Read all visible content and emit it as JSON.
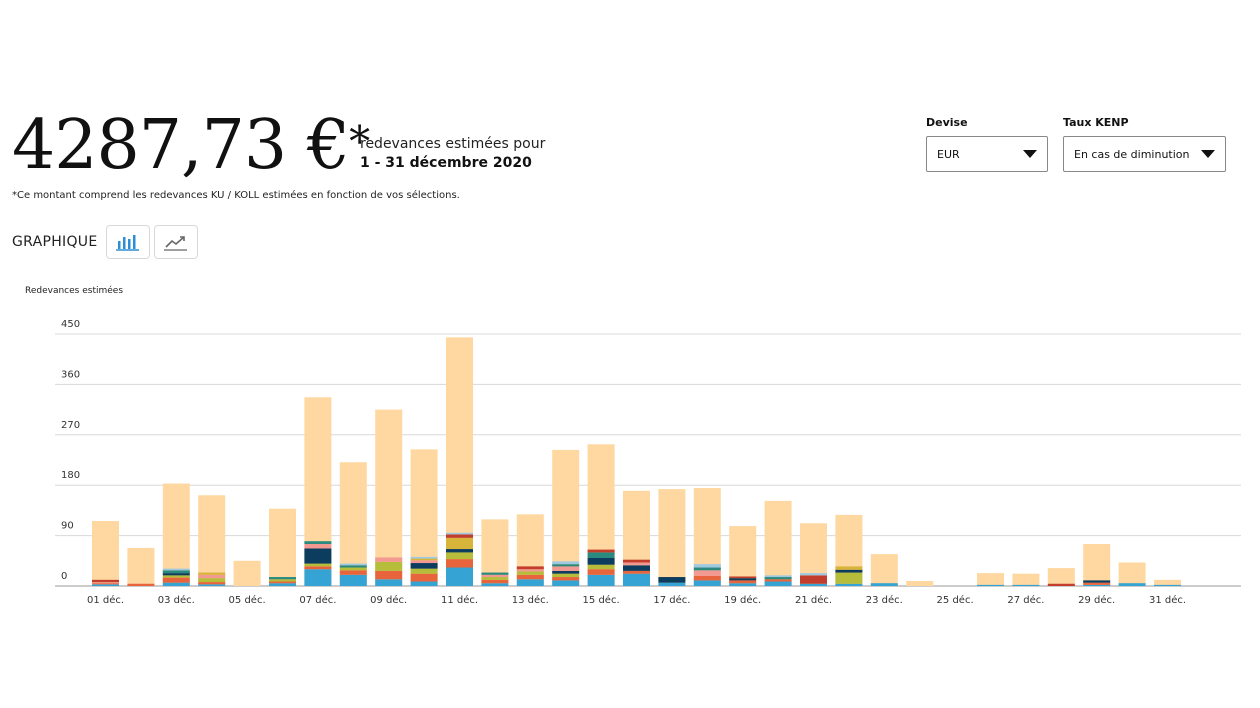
{
  "summary": {
    "amount": "4287,73 €",
    "asterisk": "*",
    "line1": "redevances estimées pour",
    "line2": "1 - 31 décembre 2020",
    "note": "*Ce montant comprend les redevances KU / KOLL estimées en fonction de vos sélections."
  },
  "graph": {
    "label": "GRAPHIQUE",
    "bar_button_icon": "bar-chart-icon",
    "line_button_icon": "line-chart-icon"
  },
  "controls": {
    "currency": {
      "label": "Devise",
      "value": "EUR"
    },
    "kenp": {
      "label": "Taux KENP",
      "value": "En cas de diminution"
    }
  },
  "colors": {
    "base": "#fed8a0",
    "segments": [
      "#35a3d3",
      "#e8643c",
      "#b5bd3a",
      "#0c3c5e",
      "#f29a92",
      "#2b8a7f",
      "#d7b43a",
      "#c23d2c",
      "#9ec9e0"
    ]
  },
  "chart_data": {
    "type": "bar",
    "ylabel": "Redevances estimées",
    "yticks": [
      0,
      90,
      180,
      270,
      360,
      450
    ],
    "ylim": [
      0,
      450
    ],
    "grid": true,
    "categories": [
      "01 déc.",
      "02 déc.",
      "03 déc.",
      "04 déc.",
      "05 déc.",
      "06 déc.",
      "07 déc.",
      "08 déc.",
      "09 déc.",
      "10 déc.",
      "11 déc.",
      "12 déc.",
      "13 déc.",
      "14 déc.",
      "15 déc.",
      "16 déc.",
      "17 déc.",
      "18 déc.",
      "19 déc.",
      "20 déc.",
      "21 déc.",
      "22 déc.",
      "23 déc.",
      "24 déc.",
      "25 déc.",
      "26 déc.",
      "27 déc.",
      "28 déc.",
      "29 déc.",
      "30 déc.",
      "31 déc."
    ],
    "xtick_labels": [
      "01 déc.",
      "03 déc.",
      "05 déc.",
      "07 déc.",
      "09 déc.",
      "11 déc.",
      "13 déc.",
      "15 déc.",
      "17 déc.",
      "19 déc.",
      "21 déc.",
      "23 déc.",
      "25 déc.",
      "27 déc.",
      "29 déc.",
      "31 déc."
    ],
    "totals": [
      116,
      68,
      183,
      162,
      45,
      138,
      337,
      221,
      315,
      244,
      444,
      119,
      128,
      243,
      253,
      170,
      173,
      175,
      107,
      152,
      112,
      127,
      57,
      9,
      0,
      23,
      22,
      32,
      75,
      42,
      11
    ],
    "segments": [
      [
        3,
        2,
        0,
        0,
        2,
        0,
        0,
        4,
        0
      ],
      [
        0,
        4,
        0,
        0,
        0,
        0,
        0,
        0,
        0
      ],
      [
        6,
        9,
        4,
        4,
        0,
        5,
        0,
        0,
        3
      ],
      [
        3,
        4,
        7,
        0,
        6,
        0,
        4,
        0,
        0
      ],
      [
        0,
        0,
        0,
        0,
        0,
        0,
        0,
        0,
        0
      ],
      [
        5,
        3,
        4,
        0,
        0,
        4,
        0,
        0,
        0
      ],
      [
        30,
        5,
        5,
        27,
        8,
        5,
        0,
        0,
        0
      ],
      [
        20,
        8,
        5,
        0,
        0,
        4,
        0,
        0,
        3
      ],
      [
        12,
        15,
        16,
        0,
        8,
        0,
        0,
        0,
        0
      ],
      [
        8,
        14,
        9,
        10,
        5,
        0,
        3,
        0,
        3
      ],
      [
        33,
        15,
        12,
        6,
        0,
        0,
        20,
        6,
        3
      ],
      [
        5,
        6,
        5,
        0,
        4,
        4,
        0,
        0,
        0
      ],
      [
        12,
        8,
        6,
        0,
        4,
        0,
        0,
        5,
        0
      ],
      [
        10,
        6,
        6,
        5,
        8,
        4,
        0,
        0,
        5
      ],
      [
        20,
        10,
        8,
        12,
        0,
        10,
        0,
        5,
        0
      ],
      [
        22,
        5,
        0,
        10,
        5,
        0,
        0,
        5,
        0
      ],
      [
        6,
        0,
        0,
        10,
        0,
        0,
        0,
        0,
        0
      ],
      [
        10,
        8,
        0,
        0,
        10,
        5,
        0,
        0,
        6
      ],
      [
        5,
        5,
        0,
        4,
        0,
        0,
        0,
        3,
        0
      ],
      [
        8,
        4,
        0,
        0,
        0,
        4,
        0,
        0,
        3
      ],
      [
        4,
        0,
        0,
        0,
        0,
        0,
        0,
        15,
        4
      ],
      [
        4,
        0,
        20,
        5,
        0,
        0,
        6,
        0,
        0
      ],
      [
        5,
        0,
        0,
        0,
        0,
        0,
        0,
        0,
        0
      ],
      [
        0,
        0,
        0,
        0,
        0,
        0,
        0,
        0,
        0
      ],
      [
        0,
        0,
        0,
        0,
        0,
        0,
        0,
        0,
        0
      ],
      [
        2,
        0,
        0,
        0,
        0,
        0,
        0,
        0,
        0
      ],
      [
        2,
        0,
        0,
        0,
        0,
        0,
        0,
        0,
        0
      ],
      [
        0,
        0,
        0,
        0,
        0,
        0,
        0,
        4,
        0
      ],
      [
        2,
        4,
        0,
        4,
        0,
        0,
        0,
        0,
        0
      ],
      [
        5,
        0,
        0,
        0,
        0,
        0,
        0,
        0,
        0
      ],
      [
        2,
        0,
        0,
        0,
        0,
        0,
        0,
        0,
        0
      ]
    ]
  }
}
